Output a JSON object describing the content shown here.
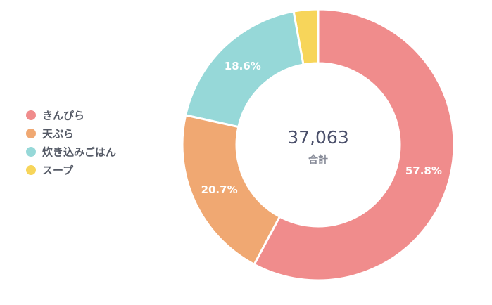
{
  "chart_data": {
    "type": "donut",
    "categories": [
      "きんぴら",
      "天ぷら",
      "炊き込みごはん",
      "スープ"
    ],
    "values": [
      57.8,
      20.7,
      18.6,
      2.9
    ],
    "value_labels": [
      "57.8%",
      "20.7%",
      "18.6%",
      null
    ],
    "colors": [
      "#f08c8c",
      "#f0a872",
      "#96d8d8",
      "#f7d55a"
    ],
    "center_value": "37,063",
    "center_label": "合計",
    "legend": "left"
  }
}
